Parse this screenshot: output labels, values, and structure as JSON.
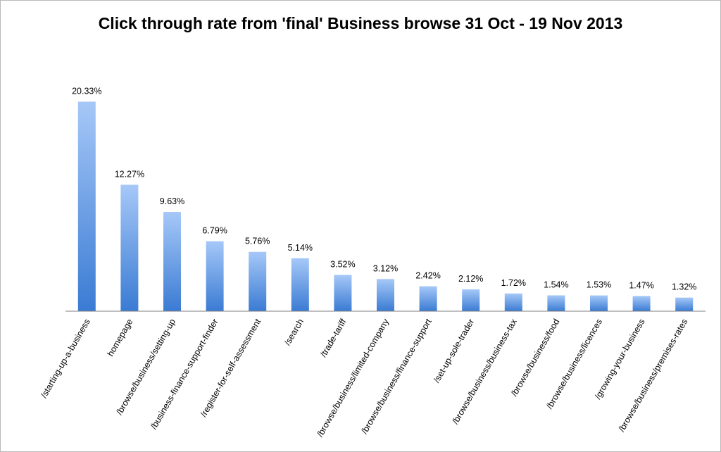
{
  "chart_data": {
    "type": "bar",
    "title": "Click through rate from 'final' Business browse 31 Oct - 19 Nov 2013",
    "xlabel": "",
    "ylabel": "",
    "grid": false,
    "legend": "none",
    "ylim": [
      0,
      22
    ],
    "categories": [
      "/starting-up-a-business",
      "homepage",
      "/browse/business/setting-up",
      "/business-finance-support-finder",
      "/register-for-self-assessment",
      "/search",
      "/trade-tariff",
      "/browse/business/limited-company",
      "/browse/business/finance-support",
      "/set-up-sole-trader",
      "/browse/business/business-tax",
      "/browse/business/food",
      "/browse/business/licences",
      "/growing-your-business",
      "/browse/business/premises-rates"
    ],
    "values": [
      20.33,
      12.27,
      9.63,
      6.79,
      5.76,
      5.14,
      3.52,
      3.12,
      2.42,
      2.12,
      1.72,
      1.54,
      1.53,
      1.47,
      1.32
    ],
    "data_labels": [
      "20.33%",
      "12.27%",
      "9.63%",
      "6.79%",
      "5.76%",
      "5.14%",
      "3.52%",
      "3.12%",
      "2.42%",
      "2.12%",
      "1.72%",
      "1.54%",
      "1.53%",
      "1.47%",
      "1.32%"
    ],
    "colors": {
      "bar_top": "#a6c8f8",
      "bar_bottom": "#3a7bd3",
      "axis": "#7f7f7f"
    }
  }
}
